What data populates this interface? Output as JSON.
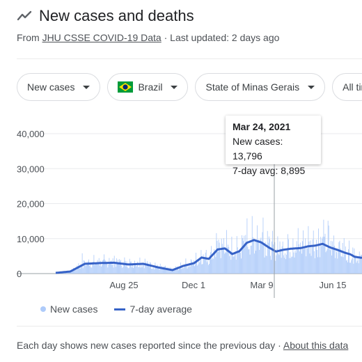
{
  "header": {
    "title": "New cases and deaths",
    "source_prefix": "From ",
    "source_link": "JHU CSSE COVID-19 Data",
    "updated": " · Last updated: 2 days ago",
    "icon": "trending-line-icon"
  },
  "filters": [
    {
      "label": "New cases"
    },
    {
      "label": "Brazil",
      "flag": "brazil-flag-icon"
    },
    {
      "label": "State of Minas Gerais"
    },
    {
      "label": "All tir"
    }
  ],
  "tooltip": {
    "date": "Mar 24, 2021",
    "new_cases": "New cases: 13,796",
    "avg": "7-day avg: 8,895"
  },
  "legend": {
    "new_cases": "New cases",
    "avg": "7-day average"
  },
  "footer": {
    "text": "Each day shows new cases reported since the previous day · ",
    "link": "About this data"
  },
  "chart_data": {
    "type": "bar",
    "ylim": [
      0,
      40000
    ],
    "y_ticks": [
      "0",
      "10,000",
      "20,000",
      "30,000",
      "40,000"
    ],
    "x_ticks": [
      "Aug 25",
      "Dec 1",
      "Mar 9",
      "Jun 15"
    ],
    "highlight_date": "Mar 24, 2021",
    "series": [
      {
        "name": "New cases",
        "color": "#aecbfa"
      },
      {
        "name": "7-day average",
        "color": "#3662c7"
      }
    ],
    "avg_profile": [
      [
        0,
        200
      ],
      [
        20,
        600
      ],
      [
        40,
        2800
      ],
      [
        60,
        3000
      ],
      [
        80,
        3100
      ],
      [
        100,
        2600
      ],
      [
        120,
        2800
      ],
      [
        140,
        1800
      ],
      [
        160,
        1000
      ],
      [
        175,
        2200
      ],
      [
        190,
        3000
      ],
      [
        200,
        4600
      ],
      [
        210,
        4200
      ],
      [
        222,
        6900
      ],
      [
        232,
        7200
      ],
      [
        242,
        5600
      ],
      [
        252,
        6400
      ],
      [
        262,
        8800
      ],
      [
        272,
        9600
      ],
      [
        282,
        8900
      ],
      [
        292,
        7500
      ],
      [
        302,
        6300
      ],
      [
        312,
        6800
      ],
      [
        322,
        7100
      ],
      [
        336,
        7300
      ],
      [
        346,
        7800
      ],
      [
        356,
        8000
      ],
      [
        366,
        8500
      ],
      [
        376,
        7500
      ],
      [
        386,
        6800
      ],
      [
        396,
        6000
      ],
      [
        404,
        5500
      ],
      [
        410,
        4800
      ],
      [
        420,
        4500
      ]
    ]
  }
}
